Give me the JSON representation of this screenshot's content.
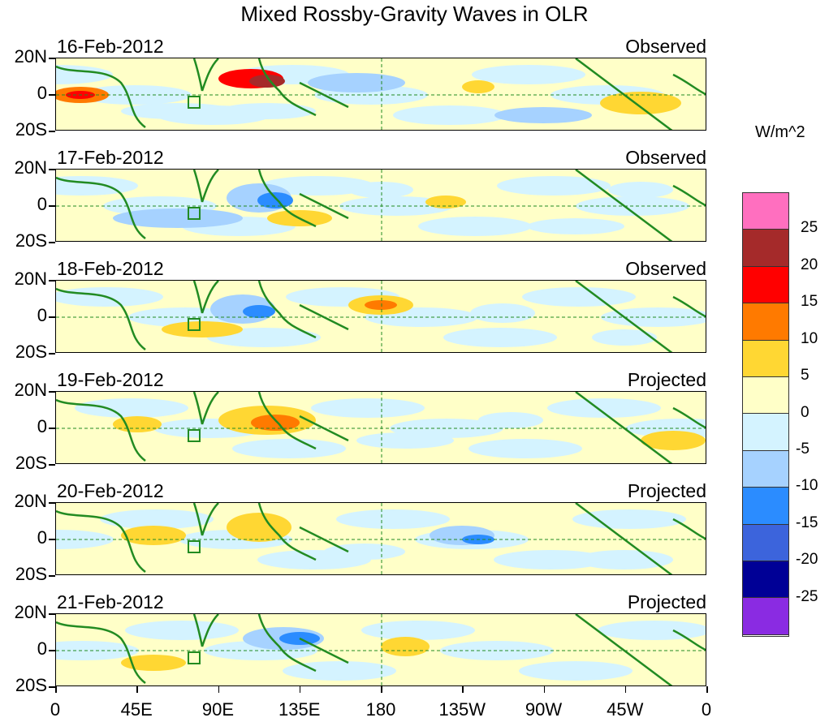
{
  "title": "Mixed Rossby-Gravity Waves in OLR",
  "panels": [
    {
      "date": "16-Feb-2012",
      "kind": "Observed"
    },
    {
      "date": "17-Feb-2012",
      "kind": "Observed"
    },
    {
      "date": "18-Feb-2012",
      "kind": "Observed"
    },
    {
      "date": "19-Feb-2012",
      "kind": "Projected"
    },
    {
      "date": "20-Feb-2012",
      "kind": "Projected"
    },
    {
      "date": "21-Feb-2012",
      "kind": "Projected"
    }
  ],
  "lat_labels": [
    "20N",
    "0",
    "20S"
  ],
  "lon_labels": [
    "0",
    "45E",
    "90E",
    "135E",
    "180",
    "135W",
    "90W",
    "45W",
    "0"
  ],
  "colorbar": {
    "unit": "W/m^2",
    "labels": [
      "25",
      "20",
      "15",
      "10",
      "5",
      "0",
      "-5",
      "-10",
      "-15",
      "-20",
      "-25"
    ],
    "colors": [
      "#ff6fbf",
      "#a52a2a",
      "#ff0000",
      "#ff7a00",
      "#ffd733",
      "#ffffc8",
      "#d4f3ff",
      "#a6d2ff",
      "#2b8cff",
      "#3c64dc",
      "#000096",
      "#8a2be2"
    ]
  },
  "colors": {
    "land": "#228b22",
    "frame": "#000000"
  }
}
